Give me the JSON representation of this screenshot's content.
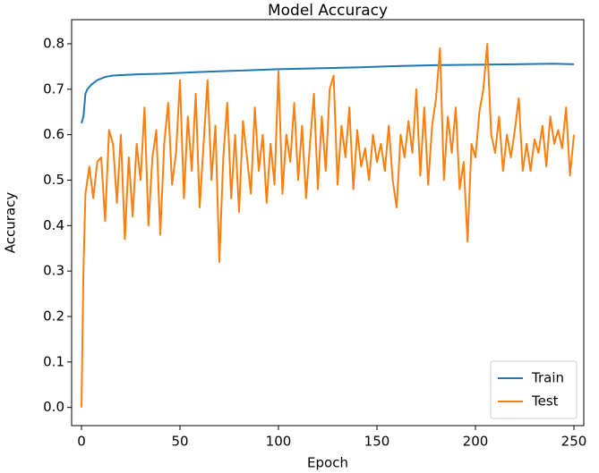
{
  "chart_data": {
    "type": "line",
    "title": "Model Accuracy",
    "x_label": "Epoch",
    "y_label": "Accuracy",
    "xlim": [
      -5,
      255
    ],
    "ylim": [
      -0.04,
      0.853
    ],
    "xticks": [
      0,
      50,
      100,
      150,
      200,
      250
    ],
    "yticks": [
      {
        "value": 0,
        "label": "0.0"
      },
      0.1,
      0.2,
      0.3,
      0.4,
      0.5,
      0.6,
      0.7,
      0.8
    ],
    "legend": "lower right",
    "series": [
      {
        "name": "Train",
        "color": "#1f77b4",
        "x": [
          0,
          1,
          2,
          3,
          5,
          8,
          12,
          16,
          20,
          30,
          40,
          60,
          80,
          100,
          120,
          140,
          160,
          180,
          200,
          220,
          240,
          250
        ],
        "values": [
          0.625,
          0.64,
          0.69,
          0.7,
          0.71,
          0.72,
          0.727,
          0.73,
          0.731,
          0.733,
          0.734,
          0.738,
          0.741,
          0.744,
          0.746,
          0.748,
          0.751,
          0.753,
          0.754,
          0.755,
          0.756,
          0.755
        ]
      },
      {
        "name": "Test",
        "color": "#ff7f0e",
        "x": [
          0,
          1,
          2,
          4,
          6,
          8,
          10,
          12,
          14,
          16,
          18,
          20,
          22,
          24,
          26,
          28,
          30,
          32,
          34,
          36,
          38,
          40,
          42,
          44,
          46,
          48,
          50,
          52,
          54,
          56,
          58,
          60,
          62,
          64,
          66,
          68,
          70,
          72,
          74,
          76,
          78,
          80,
          82,
          84,
          86,
          88,
          90,
          92,
          94,
          96,
          98,
          100,
          102,
          104,
          106,
          108,
          110,
          112,
          114,
          116,
          118,
          120,
          122,
          124,
          126,
          128,
          130,
          132,
          134,
          136,
          138,
          140,
          142,
          144,
          146,
          148,
          150,
          152,
          154,
          156,
          158,
          160,
          162,
          164,
          166,
          168,
          170,
          172,
          174,
          176,
          178,
          180,
          182,
          184,
          186,
          188,
          190,
          192,
          194,
          196,
          198,
          200,
          202,
          204,
          206,
          208,
          210,
          212,
          214,
          216,
          218,
          220,
          222,
          224,
          226,
          228,
          230,
          232,
          234,
          236,
          238,
          240,
          242,
          244,
          246,
          248,
          250
        ],
        "values": [
          0.0,
          0.3,
          0.47,
          0.53,
          0.46,
          0.54,
          0.55,
          0.41,
          0.61,
          0.58,
          0.45,
          0.6,
          0.37,
          0.55,
          0.42,
          0.58,
          0.5,
          0.66,
          0.4,
          0.55,
          0.61,
          0.38,
          0.58,
          0.67,
          0.49,
          0.56,
          0.72,
          0.46,
          0.64,
          0.52,
          0.69,
          0.44,
          0.58,
          0.72,
          0.5,
          0.62,
          0.32,
          0.55,
          0.67,
          0.46,
          0.6,
          0.43,
          0.63,
          0.55,
          0.47,
          0.66,
          0.52,
          0.6,
          0.45,
          0.58,
          0.49,
          0.74,
          0.47,
          0.6,
          0.54,
          0.67,
          0.5,
          0.62,
          0.46,
          0.58,
          0.69,
          0.48,
          0.64,
          0.52,
          0.7,
          0.73,
          0.49,
          0.62,
          0.55,
          0.66,
          0.48,
          0.61,
          0.53,
          0.57,
          0.5,
          0.6,
          0.54,
          0.58,
          0.52,
          0.62,
          0.5,
          0.44,
          0.6,
          0.55,
          0.63,
          0.56,
          0.7,
          0.51,
          0.66,
          0.49,
          0.62,
          0.68,
          0.79,
          0.5,
          0.64,
          0.56,
          0.66,
          0.48,
          0.54,
          0.365,
          0.58,
          0.55,
          0.65,
          0.7,
          0.8,
          0.6,
          0.56,
          0.64,
          0.52,
          0.6,
          0.55,
          0.61,
          0.68,
          0.52,
          0.58,
          0.52,
          0.59,
          0.56,
          0.62,
          0.53,
          0.64,
          0.58,
          0.61,
          0.57,
          0.66,
          0.51,
          0.6
        ]
      }
    ]
  }
}
